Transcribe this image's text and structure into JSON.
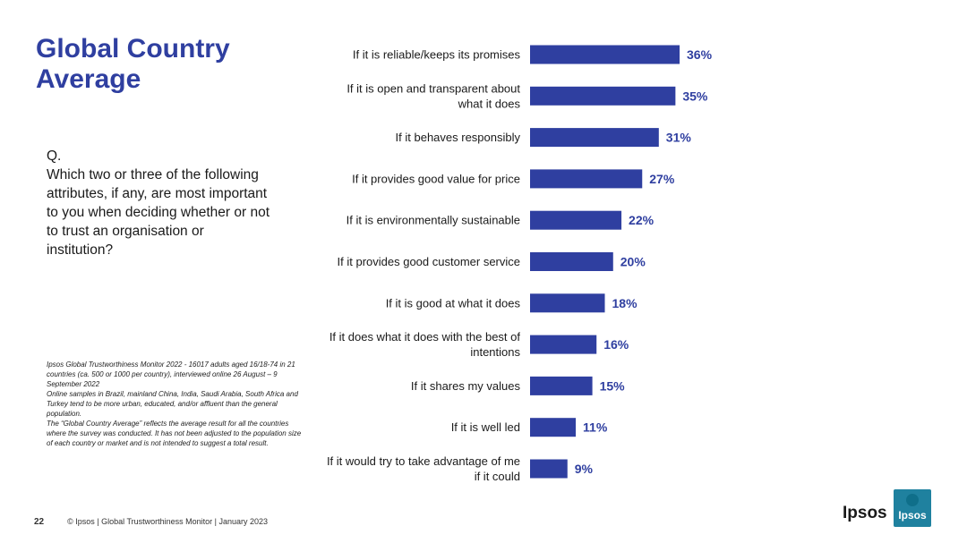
{
  "title": "Global Country\nAverage",
  "question": "Q.\nWhich two or three of the following attributes, if any, are most important to you when deciding whether or not to trust an organisation or institution?",
  "footnote": "Ipsos Global Trustworthiness Monitor 2022 - 16017 adults aged 16/18-74 in 21 countries (ca. 500 or 1000 per country), interviewed online 26 August – 9 September 2022\nOnline samples in Brazil, mainland China, India, Saudi Arabia, South Africa and Turkey tend to be more urban, educated, and/or affluent than the general population.\nThe “Global Country Average” reflects the average result for all the countries where the survey was conducted. It has not been adjusted to the population size of each country or market and is not intended to suggest a total result.",
  "footer": {
    "page_number": "22",
    "text": "© Ipsos | Global Trustworthiness Monitor | January 2023"
  },
  "logo": {
    "wordmark": "Ipsos",
    "box_text": "Ipsos"
  },
  "colors": {
    "accent": "#2f3fa0",
    "logo_teal": "#1a9e9a"
  },
  "chart_data": {
    "type": "bar",
    "orientation": "horizontal",
    "categories": [
      [
        "If it is reliable/keeps its promises"
      ],
      [
        "If it is open and transparent about",
        "what it does"
      ],
      [
        "If it behaves responsibly"
      ],
      [
        "If it provides good value for price"
      ],
      [
        "If it is environmentally sustainable"
      ],
      [
        "If it provides good customer service"
      ],
      [
        "If it is good at what it does"
      ],
      [
        "If it does what it does with the best of",
        "intentions"
      ],
      [
        "If it shares my values"
      ],
      [
        "If it is well led"
      ],
      [
        "If it would try to take advantage of me",
        "if it could"
      ]
    ],
    "values": [
      36,
      35,
      31,
      27,
      22,
      20,
      18,
      16,
      15,
      11,
      9
    ],
    "value_labels": [
      "36%",
      "35%",
      "31%",
      "27%",
      "22%",
      "20%",
      "18%",
      "16%",
      "15%",
      "11%",
      "9%"
    ],
    "xlim": [
      0,
      100
    ],
    "grid": false,
    "legend": "none"
  }
}
